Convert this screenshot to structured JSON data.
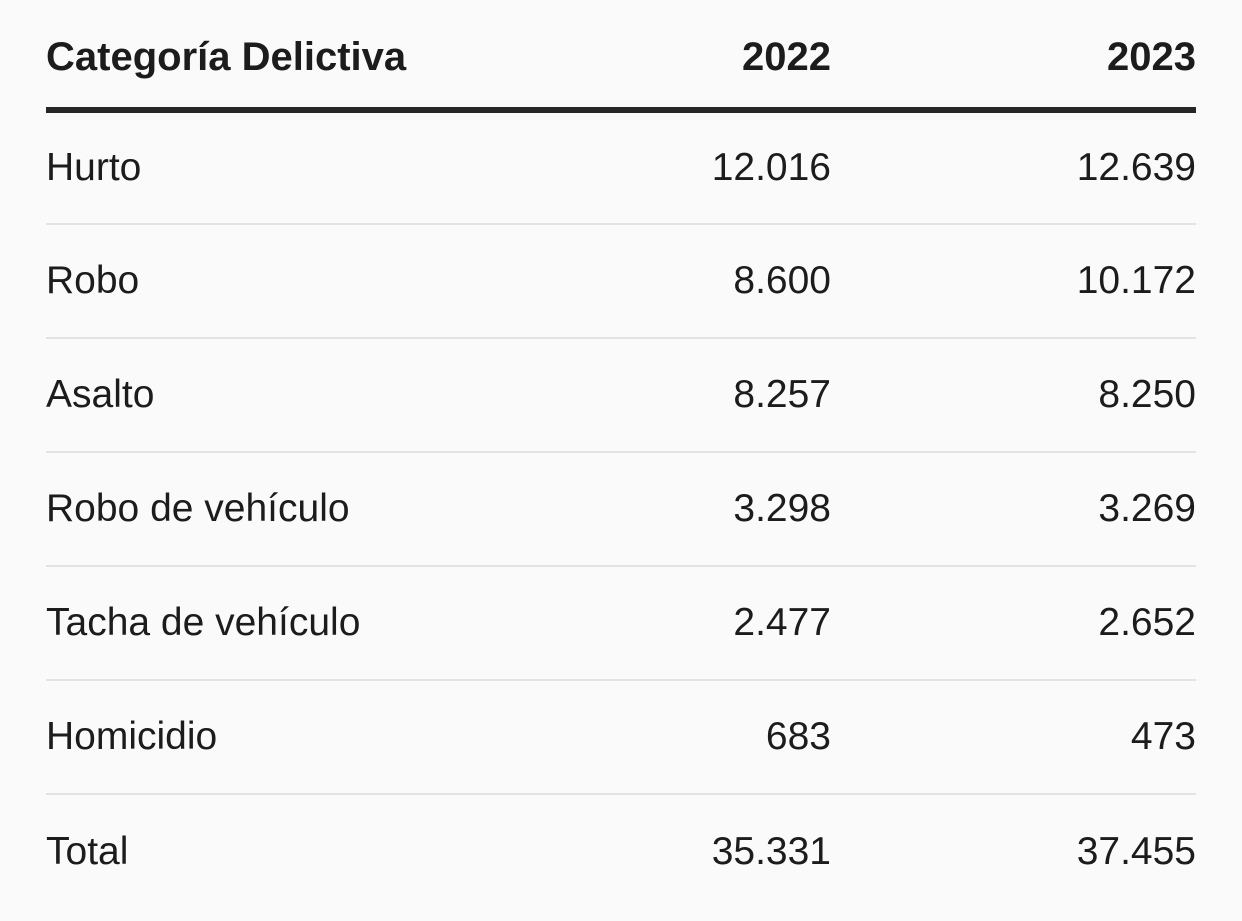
{
  "table": {
    "headers": {
      "category": "Categoría Delictiva",
      "year1": "2022",
      "year2": "2023"
    },
    "rows": [
      {
        "category": "Hurto",
        "year1": "12.016",
        "year2": "12.639"
      },
      {
        "category": "Robo",
        "year1": "8.600",
        "year2": "10.172"
      },
      {
        "category": "Asalto",
        "year1": "8.257",
        "year2": "8.250"
      },
      {
        "category": "Robo de vehículo",
        "year1": "3.298",
        "year2": "3.269"
      },
      {
        "category": "Tacha de vehículo",
        "year1": "2.477",
        "year2": "2.652"
      },
      {
        "category": "Homicidio",
        "year1": "683",
        "year2": "473"
      },
      {
        "category": "Total",
        "year1": "35.331",
        "year2": "37.455"
      }
    ]
  },
  "colors": {
    "background": "#fafafa",
    "text": "#1c1c1c",
    "header_rule": "#262626",
    "row_divider": "#e3e3e3"
  }
}
